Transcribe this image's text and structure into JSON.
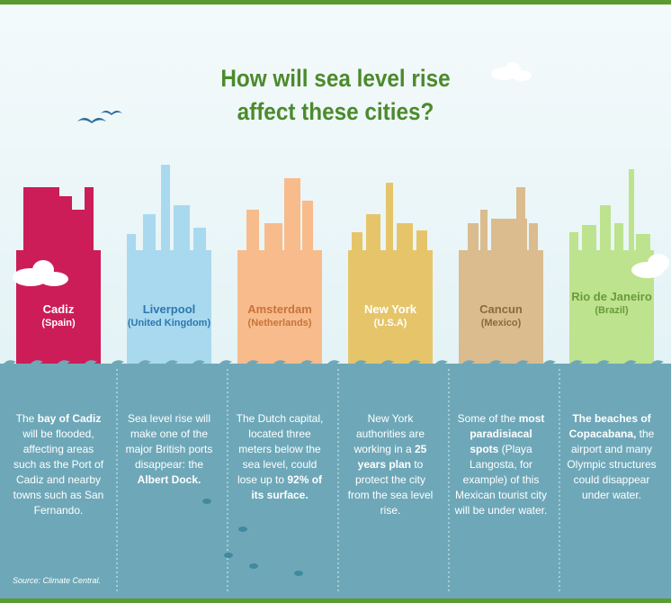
{
  "title": {
    "line1": "How will sea level rise",
    "line2": "affect these cities?"
  },
  "source": "Source: Climate Central.",
  "cities": [
    {
      "name": "Cadiz",
      "country": "(Spain)",
      "color": "#cc1d58",
      "name_color": "#ffffff",
      "description": [
        {
          "text": "The ",
          "bold": false
        },
        {
          "text": "bay of Cadiz",
          "bold": true
        },
        {
          "text": " will be flooded, affecting areas such as the Port of Cadiz and nearby towns such as San Fernando.",
          "bold": false
        }
      ]
    },
    {
      "name": "Liverpool",
      "country": "(United Kingdom)",
      "color": "#a9d9ef",
      "name_color": "#2b78b0",
      "description": [
        {
          "text": "Sea level rise will make one of the major British ports disappear: the ",
          "bold": false
        },
        {
          "text": "Albert Dock.",
          "bold": true
        }
      ]
    },
    {
      "name": "Amsterdam",
      "country": "(Netherlands)",
      "color": "#f8bb8c",
      "name_color": "#c8733a",
      "description": [
        {
          "text": "The Dutch capital, located three meters below the sea level, could lose up to ",
          "bold": false
        },
        {
          "text": "92% of its surface.",
          "bold": true
        }
      ]
    },
    {
      "name": "New York",
      "country": "(U.S.A)",
      "color": "#e6c56a",
      "name_color": "#ffffff",
      "description": [
        {
          "text": "New York authorities are working in a ",
          "bold": false
        },
        {
          "text": "25 years plan",
          "bold": true
        },
        {
          "text": " to protect the city from the sea level rise.",
          "bold": false
        }
      ]
    },
    {
      "name": "Cancun",
      "country": "(Mexico)",
      "color": "#dbbc8e",
      "name_color": "#8a6a40",
      "description": [
        {
          "text": "Some of the ",
          "bold": false
        },
        {
          "text": "most paradisiacal spots",
          "bold": true
        },
        {
          "text": " (Playa Langosta, for example) of this Mexican tourist city will be under water.",
          "bold": false
        }
      ]
    },
    {
      "name": "Rio de Janeiro",
      "country": "(Brazil)",
      "color": "#bde38e",
      "name_color": "#6a9a3a",
      "description": [
        {
          "text": "The beaches of Copacabana,",
          "bold": true
        },
        {
          "text": " the airport and many Olympic structures could disappear under water.",
          "bold": false
        }
      ]
    }
  ]
}
